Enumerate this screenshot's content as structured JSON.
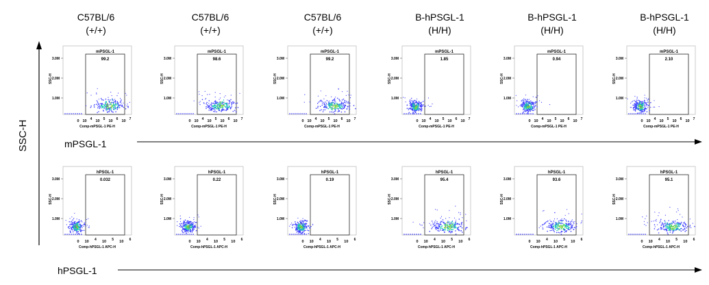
{
  "columns": [
    {
      "strain": "C57BL/6",
      "genotype": "(+/+)"
    },
    {
      "strain": "C57BL/6",
      "genotype": "(+/+)"
    },
    {
      "strain": "C57BL/6",
      "genotype": "(+/+)"
    },
    {
      "strain": "B-hPSGL-1",
      "genotype": "(H/H)"
    },
    {
      "strain": "B-hPSGL-1",
      "genotype": "(H/H)"
    },
    {
      "strain": "B-hPSGL-1",
      "genotype": "(H/H)"
    }
  ],
  "y_axis_label": "SSC-H",
  "row_labels": [
    "mPSGL-1",
    "hPSGL-1"
  ],
  "colors": {
    "axis": "#000000",
    "density_low": "#3a3aff",
    "density_mid": "#19c8b4",
    "density_high": "#7ed63b"
  },
  "chart_data": [
    {
      "type": "scatter",
      "row": "mPSGL-1",
      "ylabel": "SSC-H",
      "xlabel": "Comp-mPSGL-1 PE-H",
      "y_ticks": [
        "1.0M",
        "2.0M",
        "3.0M"
      ],
      "x_ticks": [
        "0",
        "10",
        "4",
        "10",
        "5",
        "10",
        "6",
        "10",
        "7"
      ],
      "gate_label": "mPSGL-1",
      "panels": [
        {
          "gate_value": "99.2",
          "cluster": "positive"
        },
        {
          "gate_value": "98.6",
          "cluster": "positive"
        },
        {
          "gate_value": "99.2",
          "cluster": "positive"
        },
        {
          "gate_value": "1.85",
          "cluster": "negative"
        },
        {
          "gate_value": "0.94",
          "cluster": "negative"
        },
        {
          "gate_value": "2.10",
          "cluster": "negative"
        }
      ]
    },
    {
      "type": "scatter",
      "row": "hPSGL-1",
      "ylabel": "SSC-H",
      "xlabel": "Comp-hPSGL-1 APC-H",
      "y_ticks": [
        "1.0M",
        "2.0M",
        "3.0M"
      ],
      "x_ticks": [
        "0",
        "10",
        "4",
        "10",
        "5",
        "10",
        "6"
      ],
      "gate_label": "hPSGL-1",
      "panels": [
        {
          "gate_value": "0.032",
          "cluster": "negative"
        },
        {
          "gate_value": "0.22",
          "cluster": "negative"
        },
        {
          "gate_value": "0.19",
          "cluster": "negative"
        },
        {
          "gate_value": "95.4",
          "cluster": "positive"
        },
        {
          "gate_value": "93.6",
          "cluster": "positive"
        },
        {
          "gate_value": "95.1",
          "cluster": "positive"
        }
      ]
    }
  ]
}
